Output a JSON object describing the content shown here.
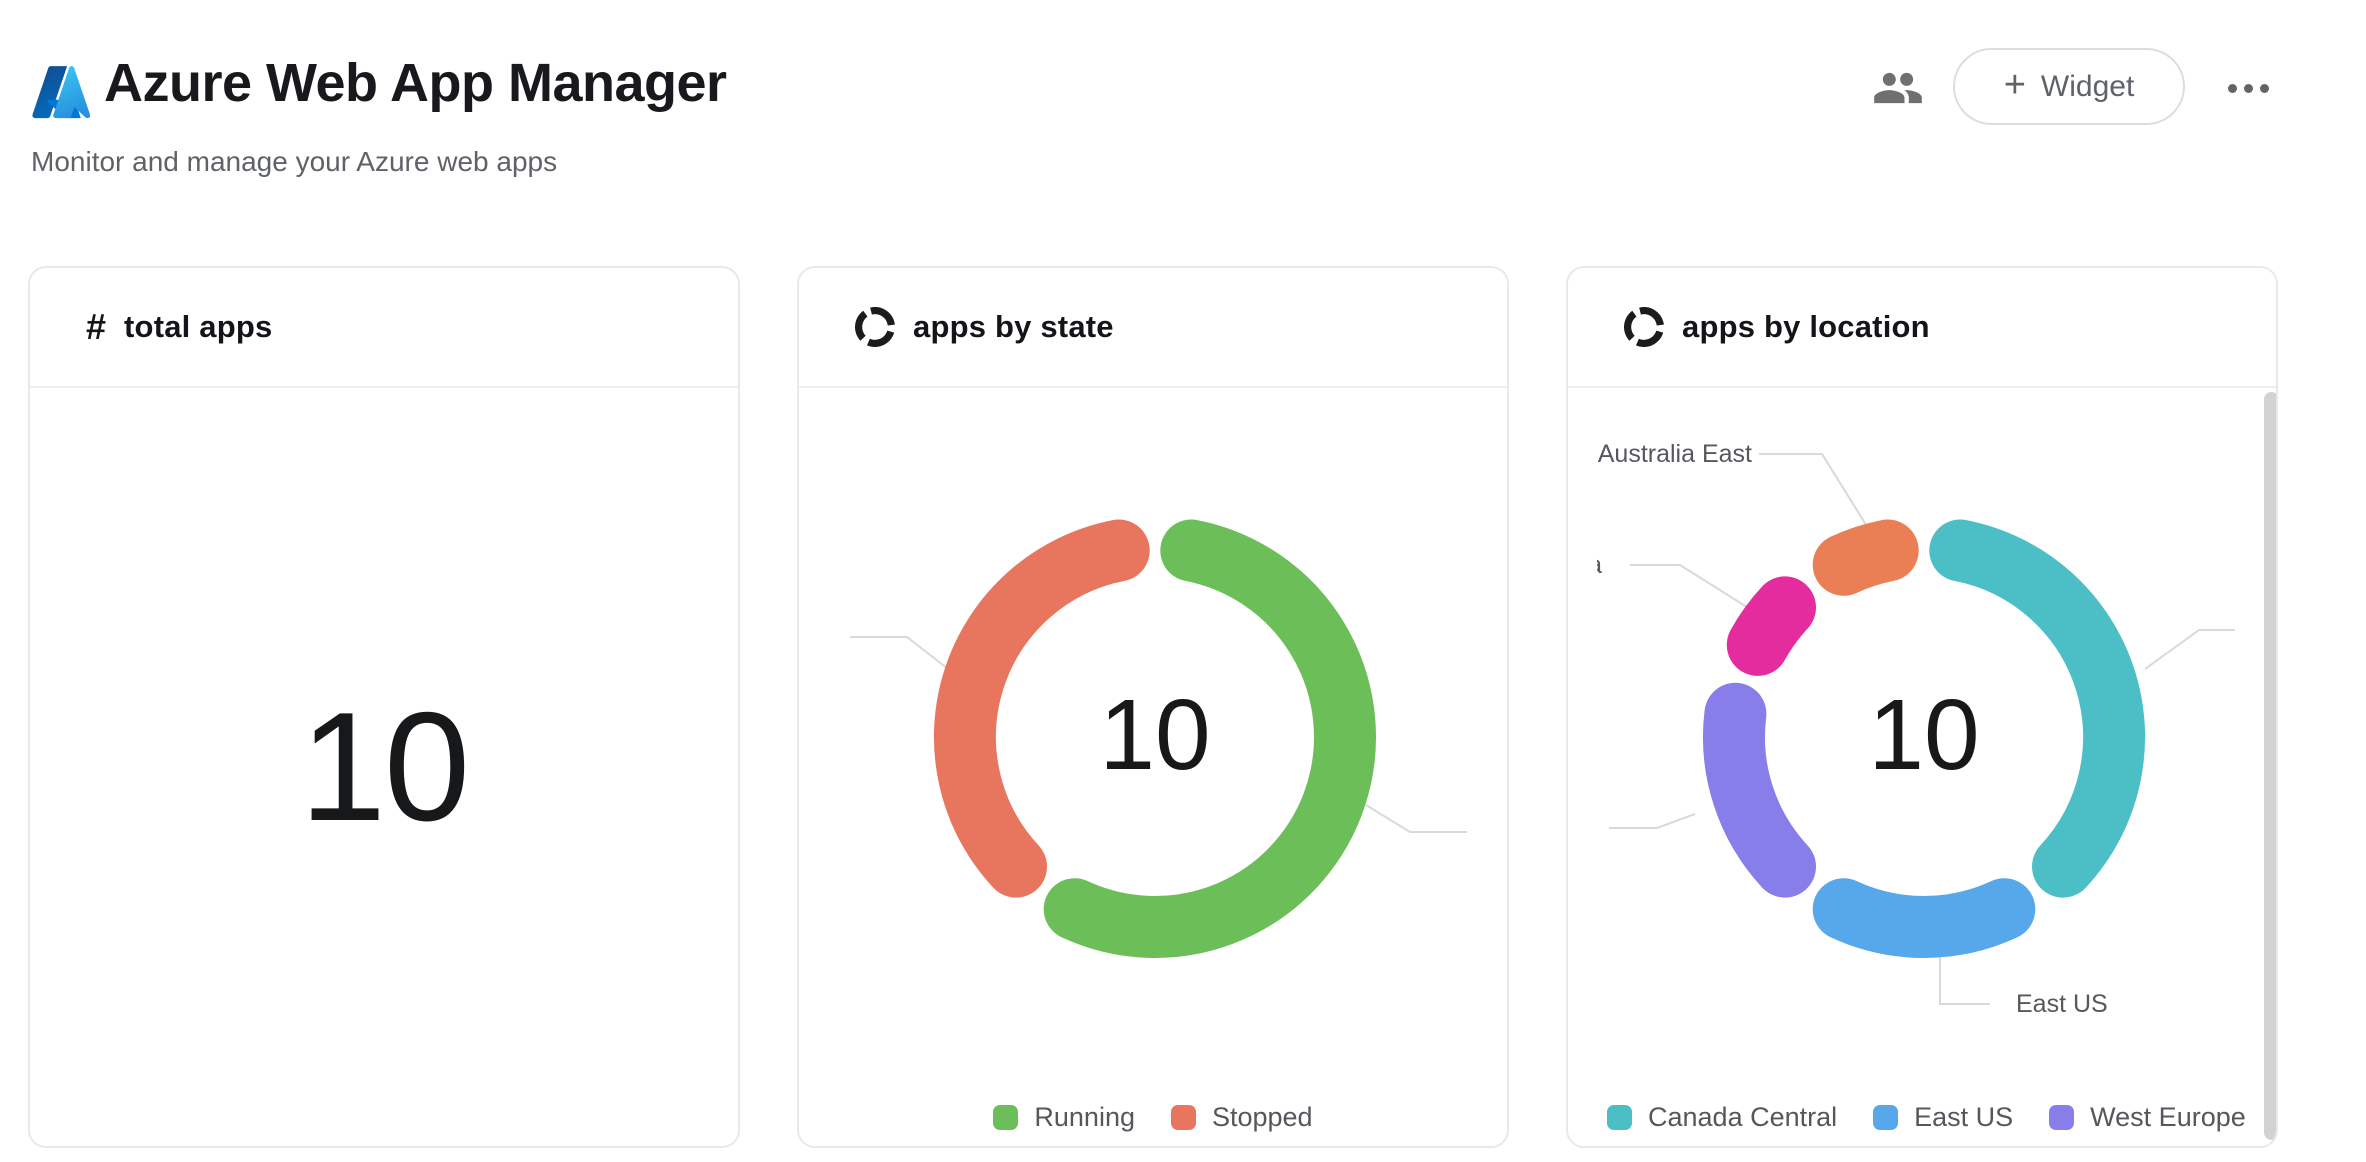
{
  "header": {
    "title": "Azure Web App Manager",
    "subtitle": "Monitor and manage your Azure web apps",
    "actions": {
      "widget_plus": "+",
      "widget_label": "Widget"
    }
  },
  "cards": [
    {
      "icon_glyph": "#",
      "title": "total apps",
      "value": "10"
    },
    {
      "title": "apps by state",
      "center_value": "10",
      "legend": [
        {
          "label": "Running",
          "color": "#6cbe58"
        },
        {
          "label": "Stopped",
          "color": "#e8765e"
        }
      ]
    },
    {
      "title": "apps by location",
      "center_value": "10",
      "legend": [
        {
          "label": "Canada Central",
          "color": "#4cbec6"
        },
        {
          "label": "East US",
          "color": "#56a8ea"
        },
        {
          "label": "West Europe",
          "color": "#877eea"
        }
      ],
      "callout_labels": [
        "Australia East",
        "East US",
        "a"
      ]
    }
  ],
  "chart_data": [
    {
      "type": "stat",
      "title": "total apps",
      "value": 10
    },
    {
      "type": "pie",
      "variant": "donut",
      "title": "apps by state",
      "center_label": "10",
      "legend_position": "bottom",
      "labels": [
        "Running",
        "Stopped"
      ],
      "values": [
        6,
        4
      ],
      "colors": [
        "#6cbe58",
        "#e8765e"
      ]
    },
    {
      "type": "pie",
      "variant": "donut",
      "title": "apps by location",
      "center_label": "10",
      "legend_position": "bottom",
      "labels": [
        "Canada Central",
        "East US",
        "West Europe",
        "a",
        "Australia East"
      ],
      "label_clipped": [
        false,
        false,
        false,
        true,
        false
      ],
      "values": [
        4,
        2,
        2,
        1,
        1
      ],
      "colors": [
        "#4cbec6",
        "#56a8ea",
        "#877eea",
        "#e52c9e",
        "#ea7e55"
      ]
    }
  ]
}
